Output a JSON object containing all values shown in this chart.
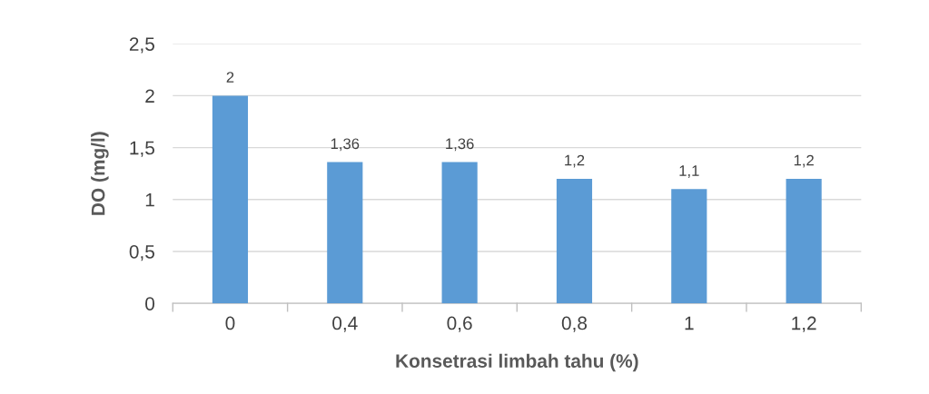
{
  "chart_data": {
    "type": "bar",
    "xlabel": "Konsetrasi limbah tahu (%)",
    "ylabel": "DO (mg/l)",
    "categories": [
      "0",
      "0,4",
      "0,6",
      "0,8",
      "1",
      "1,2"
    ],
    "values": [
      2,
      1.36,
      1.36,
      1.2,
      1.1,
      1.2
    ],
    "value_labels": [
      "2",
      "1,36",
      "1,36",
      "1,2",
      "1,1",
      "1,2"
    ],
    "color": "#5b9bd5",
    "ylim": [
      0,
      2.5
    ],
    "yticks": [
      0,
      {
        "value": 0.5,
        "label": "0,5"
      },
      1,
      {
        "value": 1.5,
        "label": "1,5"
      },
      2,
      {
        "value": 2.5,
        "label": "2,5"
      }
    ],
    "grid": "y",
    "legend": false
  }
}
